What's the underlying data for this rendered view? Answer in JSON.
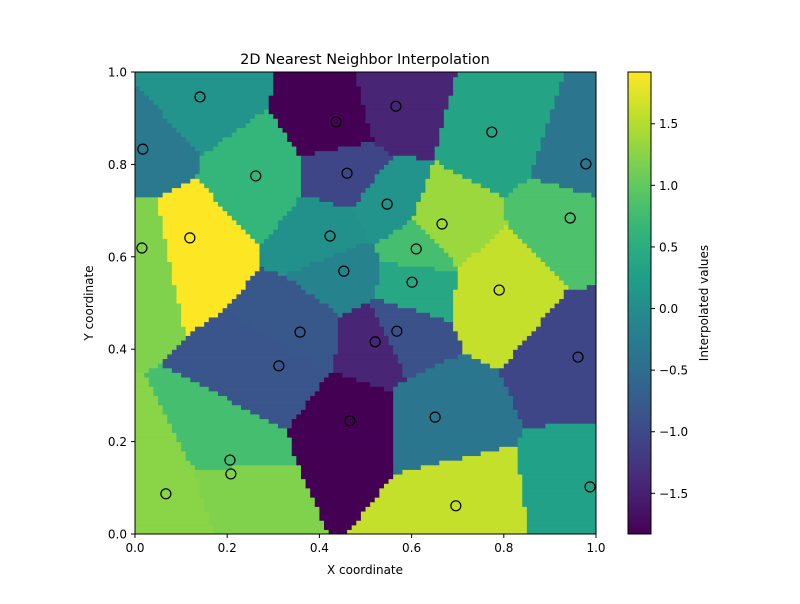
{
  "chart_data": {
    "type": "heatmap",
    "title": "2D Nearest Neighbor Interpolation",
    "xlabel": "X coordinate",
    "ylabel": "Y coordinate",
    "xlim": [
      0,
      1
    ],
    "ylim": [
      0,
      1
    ],
    "xticks": [
      "0.0",
      "0.2",
      "0.4",
      "0.6",
      "0.8",
      "1.0"
    ],
    "yticks": [
      "0.0",
      "0.2",
      "0.4",
      "0.6",
      "0.8",
      "1.0"
    ],
    "colormap": "viridis",
    "colorbar": {
      "label": "Interpolated values",
      "range": [
        -1.83,
        1.92
      ],
      "ticks": [
        "-1.5",
        "-1.0",
        "-0.5",
        "0.0",
        "0.5",
        "1.0",
        "1.5"
      ]
    },
    "marker": {
      "shape": "open-circle",
      "edge_color": "#000000"
    },
    "points": [
      {
        "x": 0.141,
        "y": 0.946,
        "value": 0.1
      },
      {
        "x": 0.436,
        "y": 0.892,
        "value": -1.83
      },
      {
        "x": 0.566,
        "y": 0.926,
        "value": -1.45
      },
      {
        "x": 0.017,
        "y": 0.833,
        "value": -0.3
      },
      {
        "x": 0.262,
        "y": 0.775,
        "value": 0.65
      },
      {
        "x": 0.46,
        "y": 0.781,
        "value": -1.05
      },
      {
        "x": 0.774,
        "y": 0.87,
        "value": 0.35
      },
      {
        "x": 0.978,
        "y": 0.801,
        "value": -0.35
      },
      {
        "x": 0.547,
        "y": 0.714,
        "value": 0.1
      },
      {
        "x": 0.666,
        "y": 0.671,
        "value": 1.35
      },
      {
        "x": 0.944,
        "y": 0.684,
        "value": 0.85
      },
      {
        "x": 0.015,
        "y": 0.619,
        "value": 1.2
      },
      {
        "x": 0.119,
        "y": 0.641,
        "value": 1.92
      },
      {
        "x": 0.423,
        "y": 0.645,
        "value": 0.05
      },
      {
        "x": 0.61,
        "y": 0.617,
        "value": 0.8
      },
      {
        "x": 0.453,
        "y": 0.569,
        "value": -0.15
      },
      {
        "x": 0.601,
        "y": 0.545,
        "value": 0.4
      },
      {
        "x": 0.79,
        "y": 0.528,
        "value": 1.6
      },
      {
        "x": 0.358,
        "y": 0.437,
        "value": -0.8
      },
      {
        "x": 0.568,
        "y": 0.439,
        "value": -0.9
      },
      {
        "x": 0.521,
        "y": 0.416,
        "value": -1.45
      },
      {
        "x": 0.312,
        "y": 0.364,
        "value": -0.85
      },
      {
        "x": 0.961,
        "y": 0.383,
        "value": -1.05
      },
      {
        "x": 0.466,
        "y": 0.245,
        "value": -1.83
      },
      {
        "x": 0.651,
        "y": 0.253,
        "value": -0.35
      },
      {
        "x": 0.206,
        "y": 0.16,
        "value": 0.8
      },
      {
        "x": 0.208,
        "y": 0.13,
        "value": 1.2
      },
      {
        "x": 0.067,
        "y": 0.087,
        "value": 1.25
      },
      {
        "x": 0.696,
        "y": 0.061,
        "value": 1.6
      },
      {
        "x": 0.987,
        "y": 0.102,
        "value": 0.3
      }
    ]
  }
}
